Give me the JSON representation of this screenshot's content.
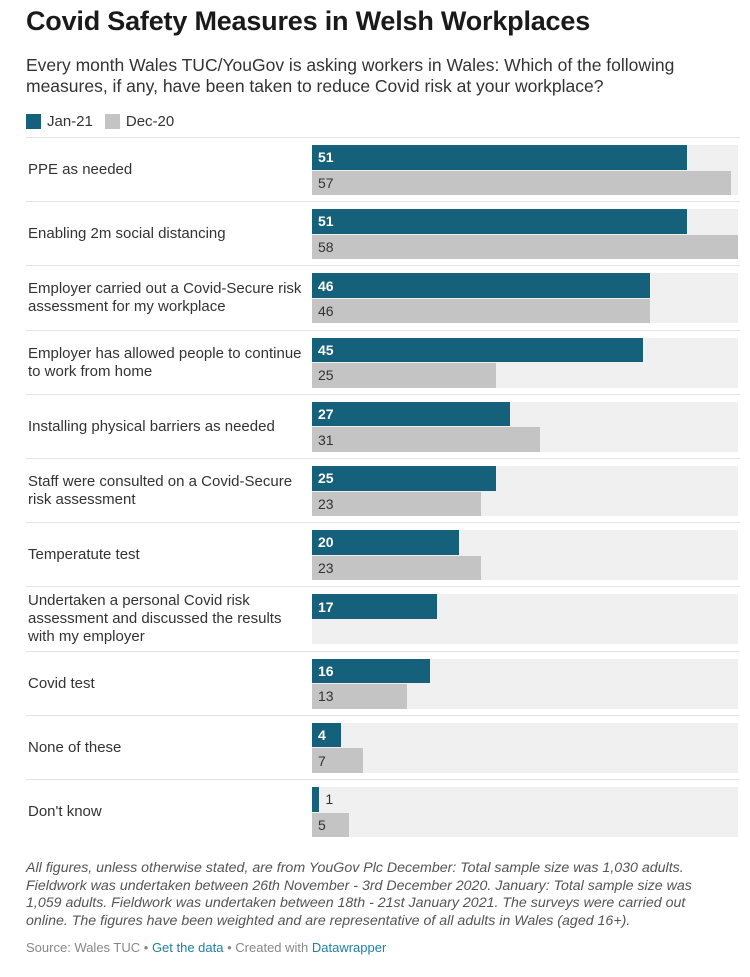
{
  "title": "Covid Safety Measures in Welsh Workplaces",
  "subtitle": "Every month Wales TUC/YouGov is asking workers in Wales: Which of the following measures, if any, have been taken to reduce Covid risk at your workplace?",
  "legend": [
    {
      "name": "Jan-21",
      "color": "#15607a"
    },
    {
      "name": "Dec-20",
      "color": "#c4c4c4"
    }
  ],
  "chart_data": {
    "type": "bar",
    "orientation": "horizontal",
    "title": "Covid Safety Measures in Welsh Workplaces",
    "xlim": [
      0,
      58
    ],
    "grid": false,
    "legend_position": "top-left",
    "categories": [
      "PPE as needed",
      "Enabling 2m social distancing",
      "Employer carried out a Covid-Secure risk assessment for my workplace",
      "Employer has allowed people to continue to work from home",
      "Installing physical barriers as needed",
      "Staff were consulted on a Covid-Secure risk assessment",
      "Temperatute test",
      "Undertaken a personal Covid risk assessment and discussed the results with my employer",
      "Covid test",
      "None of these",
      "Don't know"
    ],
    "series": [
      {
        "name": "Jan-21",
        "color": "#15607a",
        "values": [
          51,
          51,
          46,
          45,
          27,
          25,
          20,
          17,
          16,
          4,
          1
        ]
      },
      {
        "name": "Dec-20",
        "color": "#c4c4c4",
        "values": [
          57,
          58,
          46,
          25,
          31,
          23,
          23,
          null,
          13,
          7,
          5
        ]
      }
    ]
  },
  "notes": "All figures, unless otherwise stated, are from YouGov Plc December: Total sample size was 1,030 adults. Fieldwork was undertaken between 26th November - 3rd December 2020. January: Total sample size was 1,059 adults. Fieldwork was undertaken between 18th - 21st January 2021. The surveys were carried out online. The figures have been weighted and are representative of all adults in Wales (aged 16+).",
  "footer": {
    "source": "Source: Wales TUC",
    "sep1": " • ",
    "get_data": "Get the data",
    "sep2": " • Created with ",
    "tool": "Datawrapper"
  }
}
